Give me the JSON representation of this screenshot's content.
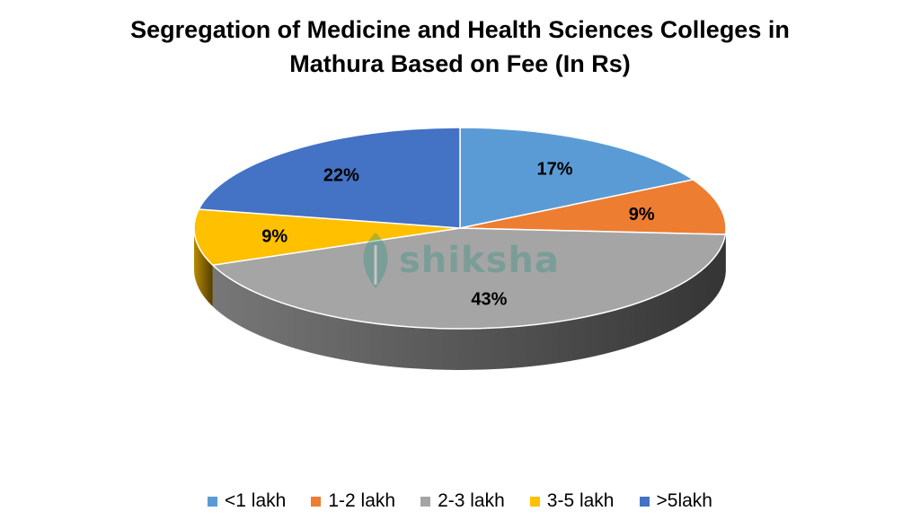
{
  "chart_data": {
    "type": "pie",
    "title": "Segregation of Medicine and Health Sciences Colleges in Mathura Based on Fee (In Rs)",
    "title_lines": [
      "Segregation of Medicine and Health Sciences Colleges in",
      "Mathura Based on Fee (In Rs)"
    ],
    "categories": [
      "<1 lakh",
      "1-2 lakh",
      "2-3 lakh",
      "3-5 lakh",
      ">5lakh"
    ],
    "values": [
      17,
      9,
      43,
      9,
      22
    ],
    "unit": "%",
    "data_labels": [
      "17%",
      "9%",
      "43%",
      "9%",
      "22%"
    ],
    "colors": [
      "#5b9bd5",
      "#ed7d31",
      "#a5a5a5",
      "#ffc000",
      "#4472c4"
    ],
    "legend_position": "bottom",
    "style": "3d"
  },
  "watermark": {
    "text": "shiksha",
    "icon": "leaf-icon",
    "color": "#2f8f7f"
  }
}
